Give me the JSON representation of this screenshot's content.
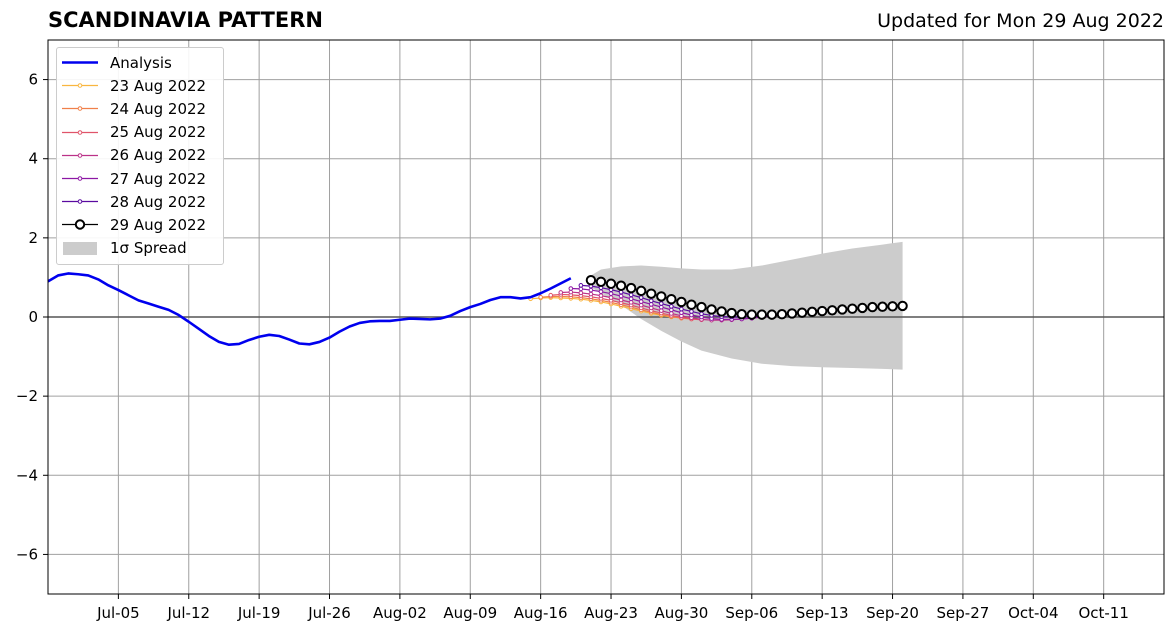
{
  "header": {
    "title": "SCANDINAVIA PATTERN",
    "updated": "Updated for Mon 29 Aug 2022"
  },
  "legend": {
    "items": [
      {
        "label": "Analysis",
        "kind": "line",
        "color": "#0000ee"
      },
      {
        "label": "23 Aug 2022",
        "kind": "marker-line",
        "color": "#f9b640"
      },
      {
        "label": "24 Aug 2022",
        "kind": "marker-line",
        "color": "#f0804a"
      },
      {
        "label": "25 Aug 2022",
        "kind": "marker-line",
        "color": "#e0546a"
      },
      {
        "label": "26 Aug 2022",
        "kind": "marker-line",
        "color": "#bb3288"
      },
      {
        "label": "27 Aug 2022",
        "kind": "marker-line",
        "color": "#8d17a4"
      },
      {
        "label": "28 Aug 2022",
        "kind": "marker-line",
        "color": "#5a0aa0"
      },
      {
        "label": "29 Aug 2022",
        "kind": "circle-line",
        "color": "#000000"
      },
      {
        "label": "1σ Spread",
        "kind": "patch",
        "color": "#cccccc"
      }
    ]
  },
  "chart_data": {
    "type": "line",
    "title": "SCANDINAVIA PATTERN",
    "xlabel": "",
    "ylabel": "",
    "x_range": [
      "2022-06-28",
      "2022-10-17"
    ],
    "ylim": [
      -7,
      7
    ],
    "yticks": [
      -6,
      -4,
      -2,
      0,
      2,
      4,
      6
    ],
    "xtick_labels": [
      {
        "date": "2022-07-05",
        "label": "Jul-05"
      },
      {
        "date": "2022-07-12",
        "label": "Jul-12"
      },
      {
        "date": "2022-07-19",
        "label": "Jul-19"
      },
      {
        "date": "2022-07-26",
        "label": "Jul-26"
      },
      {
        "date": "2022-08-02",
        "label": "Aug-02"
      },
      {
        "date": "2022-08-09",
        "label": "Aug-09"
      },
      {
        "date": "2022-08-16",
        "label": "Aug-16"
      },
      {
        "date": "2022-08-23",
        "label": "Aug-23"
      },
      {
        "date": "2022-08-30",
        "label": "Aug-30"
      },
      {
        "date": "2022-09-06",
        "label": "Sep-06"
      },
      {
        "date": "2022-09-13",
        "label": "Sep-13"
      },
      {
        "date": "2022-09-20",
        "label": "Sep-20"
      },
      {
        "date": "2022-09-27",
        "label": "Sep-27"
      },
      {
        "date": "2022-10-04",
        "label": "Oct-04"
      },
      {
        "date": "2022-10-11",
        "label": "Oct-11"
      }
    ],
    "grid": true,
    "legend_position": "top-left",
    "zero_line": true,
    "analysis": {
      "name": "Analysis",
      "color": "#0000ee",
      "points": [
        [
          "2022-06-28",
          0.9
        ],
        [
          "2022-06-29",
          1.05
        ],
        [
          "2022-06-30",
          1.1
        ],
        [
          "2022-07-01",
          1.08
        ],
        [
          "2022-07-02",
          1.05
        ],
        [
          "2022-07-03",
          0.95
        ],
        [
          "2022-07-04",
          0.8
        ],
        [
          "2022-07-05",
          0.68
        ],
        [
          "2022-07-06",
          0.55
        ],
        [
          "2022-07-07",
          0.42
        ],
        [
          "2022-07-08",
          0.34
        ],
        [
          "2022-07-09",
          0.26
        ],
        [
          "2022-07-10",
          0.18
        ],
        [
          "2022-07-11",
          0.05
        ],
        [
          "2022-07-12",
          -0.12
        ],
        [
          "2022-07-13",
          -0.3
        ],
        [
          "2022-07-14",
          -0.48
        ],
        [
          "2022-07-15",
          -0.63
        ],
        [
          "2022-07-16",
          -0.7
        ],
        [
          "2022-07-17",
          -0.68
        ],
        [
          "2022-07-18",
          -0.58
        ],
        [
          "2022-07-19",
          -0.5
        ],
        [
          "2022-07-20",
          -0.45
        ],
        [
          "2022-07-21",
          -0.48
        ],
        [
          "2022-07-22",
          -0.57
        ],
        [
          "2022-07-23",
          -0.67
        ],
        [
          "2022-07-24",
          -0.69
        ],
        [
          "2022-07-25",
          -0.63
        ],
        [
          "2022-07-26",
          -0.52
        ],
        [
          "2022-07-27",
          -0.37
        ],
        [
          "2022-07-28",
          -0.24
        ],
        [
          "2022-07-29",
          -0.15
        ],
        [
          "2022-07-30",
          -0.11
        ],
        [
          "2022-07-31",
          -0.1
        ],
        [
          "2022-08-01",
          -0.1
        ],
        [
          "2022-08-02",
          -0.07
        ],
        [
          "2022-08-03",
          -0.04
        ],
        [
          "2022-08-04",
          -0.05
        ],
        [
          "2022-08-05",
          -0.06
        ],
        [
          "2022-08-06",
          -0.04
        ],
        [
          "2022-08-07",
          0.03
        ],
        [
          "2022-08-08",
          0.15
        ],
        [
          "2022-08-09",
          0.25
        ],
        [
          "2022-08-10",
          0.33
        ],
        [
          "2022-08-11",
          0.43
        ],
        [
          "2022-08-12",
          0.5
        ],
        [
          "2022-08-13",
          0.5
        ],
        [
          "2022-08-14",
          0.47
        ],
        [
          "2022-08-15",
          0.5
        ],
        [
          "2022-08-16",
          0.6
        ],
        [
          "2022-08-17",
          0.72
        ],
        [
          "2022-08-18",
          0.85
        ],
        [
          "2022-08-19",
          0.98
        ]
      ]
    },
    "forecasts": [
      {
        "name": "23 Aug 2022",
        "color": "#f9b640",
        "start": "2022-08-15",
        "values": [
          0.46,
          0.48,
          0.49,
          0.48,
          0.47,
          0.45,
          0.42,
          0.38,
          0.33,
          0.27,
          0.21,
          0.15,
          0.09,
          0.04,
          0.0,
          -0.02,
          -0.03
        ]
      },
      {
        "name": "24 Aug 2022",
        "color": "#f0804a",
        "start": "2022-08-16",
        "values": [
          0.5,
          0.52,
          0.52,
          0.51,
          0.49,
          0.46,
          0.42,
          0.37,
          0.31,
          0.25,
          0.18,
          0.12,
          0.06,
          0.01,
          -0.03,
          -0.05,
          -0.06
        ]
      },
      {
        "name": "25 Aug 2022",
        "color": "#e0546a",
        "start": "2022-08-17",
        "values": [
          0.55,
          0.57,
          0.56,
          0.54,
          0.51,
          0.47,
          0.42,
          0.36,
          0.3,
          0.23,
          0.16,
          0.1,
          0.04,
          -0.01,
          -0.05,
          -0.07
        ]
      },
      {
        "name": "26 Aug 2022",
        "color": "#bb3288",
        "start": "2022-08-18",
        "values": [
          0.62,
          0.63,
          0.61,
          0.58,
          0.54,
          0.49,
          0.43,
          0.37,
          0.3,
          0.23,
          0.16,
          0.09,
          0.03,
          -0.02,
          -0.06,
          -0.08,
          -0.08,
          -0.07,
          -0.05,
          -0.03,
          0.0,
          0.03,
          0.06,
          0.09,
          0.12,
          0.14,
          0.16,
          0.18,
          0.2,
          0.21,
          0.22,
          0.23,
          0.24
        ]
      },
      {
        "name": "27 Aug 2022",
        "color": "#8d17a4",
        "start": "2022-08-19",
        "values": [
          0.72,
          0.71,
          0.68,
          0.64,
          0.59,
          0.53,
          0.46,
          0.39,
          0.32,
          0.25,
          0.18,
          0.11,
          0.05,
          0.0,
          -0.04,
          -0.06,
          -0.06,
          -0.05,
          -0.03,
          0.0,
          0.03,
          0.06,
          0.09,
          0.12,
          0.15,
          0.17,
          0.19,
          0.21,
          0.22,
          0.23,
          0.24,
          0.25
        ]
      },
      {
        "name": "28 Aug 2022",
        "color": "#5a0aa0",
        "start": "2022-08-20",
        "values": [
          0.8,
          0.78,
          0.74,
          0.69,
          0.63,
          0.56,
          0.49,
          0.41,
          0.34,
          0.27,
          0.2,
          0.14,
          0.08,
          0.04,
          0.01,
          0.0,
          0.0,
          0.01,
          0.03,
          0.05,
          0.08,
          0.1,
          0.13,
          0.15,
          0.17,
          0.19,
          0.21,
          0.23,
          0.24,
          0.25,
          0.26
        ]
      },
      {
        "name": "29 Aug 2022",
        "color": "#000000",
        "start": "2022-08-21",
        "values": [
          0.93,
          0.89,
          0.84,
          0.79,
          0.73,
          0.66,
          0.59,
          0.52,
          0.45,
          0.38,
          0.31,
          0.25,
          0.19,
          0.14,
          0.1,
          0.07,
          0.06,
          0.06,
          0.06,
          0.07,
          0.09,
          0.11,
          0.13,
          0.15,
          0.17,
          0.19,
          0.21,
          0.23,
          0.25,
          0.26,
          0.27,
          0.28
        ]
      }
    ],
    "spread": {
      "name": "1σ Spread",
      "color": "#cccccc",
      "dates": [
        "2022-08-21",
        "2022-08-22",
        "2022-08-24",
        "2022-08-26",
        "2022-08-28",
        "2022-08-30",
        "2022-09-01",
        "2022-09-04",
        "2022-09-07",
        "2022-09-10",
        "2022-09-13",
        "2022-09-16",
        "2022-09-19",
        "2022-09-21"
      ],
      "upper": [
        1.05,
        1.2,
        1.28,
        1.3,
        1.27,
        1.23,
        1.2,
        1.2,
        1.3,
        1.45,
        1.6,
        1.73,
        1.83,
        1.9
      ],
      "lower": [
        0.75,
        0.6,
        0.3,
        -0.05,
        -0.35,
        -0.62,
        -0.85,
        -1.05,
        -1.18,
        -1.24,
        -1.27,
        -1.29,
        -1.31,
        -1.33
      ]
    }
  }
}
